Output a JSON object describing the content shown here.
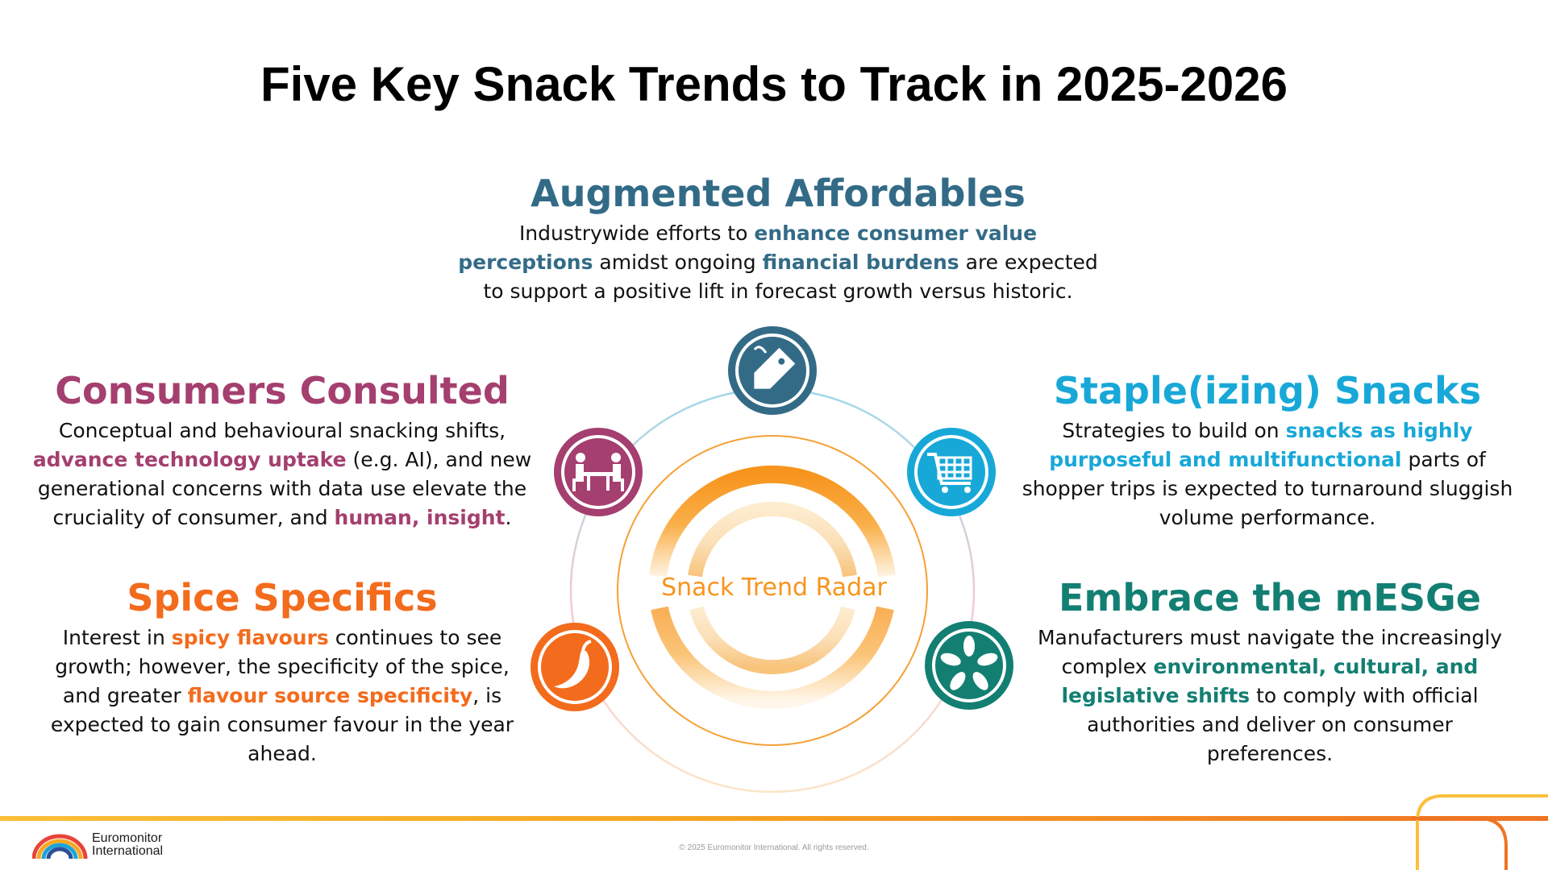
{
  "title": "Five Key Snack Trends to Track in 2025-2026",
  "center_label": "Snack Trend Radar",
  "colors": {
    "augmented": "#336b87",
    "consumers": "#a43f6f",
    "staple": "#18a8d8",
    "spice": "#f36b1c",
    "mesge": "#137f73",
    "radar_orange": "#f7941d"
  },
  "trends": {
    "augmented": {
      "heading": "Augmented Affordables",
      "icon": "price-tag-icon",
      "segments": [
        {
          "t": "Industrywide efforts to ",
          "h": false
        },
        {
          "t": "enhance consumer value perceptions",
          "h": true
        },
        {
          "t": " amidst ongoing ",
          "h": false
        },
        {
          "t": "financial burdens",
          "h": true
        },
        {
          "t": " are expected to support a positive lift in forecast growth versus historic.",
          "h": false
        }
      ]
    },
    "consumers": {
      "heading": "Consumers Consulted",
      "icon": "meeting-table-icon",
      "segments": [
        {
          "t": "Conceptual and behavioural snacking shifts, ",
          "h": false
        },
        {
          "t": "advance technology uptake",
          "h": true
        },
        {
          "t": " (e.g. AI), and new generational concerns with data use elevate the cruciality of consumer, and ",
          "h": false
        },
        {
          "t": "human, insight",
          "h": true
        },
        {
          "t": ".",
          "h": false
        }
      ]
    },
    "staple": {
      "heading": "Staple(izing) Snacks",
      "icon": "shopping-cart-icon",
      "segments": [
        {
          "t": "Strategies to build on ",
          "h": false
        },
        {
          "t": "snacks as highly purposeful and multifunctional",
          "h": true
        },
        {
          "t": " parts of shopper trips is expected to turnaround sluggish volume performance.",
          "h": false
        }
      ]
    },
    "spice": {
      "heading": "Spice Specifics",
      "icon": "chili-pepper-icon",
      "segments": [
        {
          "t": "Interest in ",
          "h": false
        },
        {
          "t": "spicy flavours",
          "h": true
        },
        {
          "t": " continues to see growth; however, the specificity of the spice, and greater ",
          "h": false
        },
        {
          "t": "flavour source specificity",
          "h": true
        },
        {
          "t": ", is expected to gain consumer favour in the year ahead.",
          "h": false
        }
      ]
    },
    "mesge": {
      "heading": "Embrace the mESGe",
      "icon": "joined-hands-icon",
      "segments": [
        {
          "t": "Manufacturers must navigate the increasingly complex ",
          "h": false
        },
        {
          "t": "environmental, cultural, and legislative shifts",
          "h": true
        },
        {
          "t": " to comply with official authorities and deliver on consumer preferences.",
          "h": false
        }
      ]
    }
  },
  "footer": {
    "logo_line1": "Euromonitor",
    "logo_line2": "International",
    "copyright": "© 2025 Euromonitor International. All rights reserved."
  }
}
